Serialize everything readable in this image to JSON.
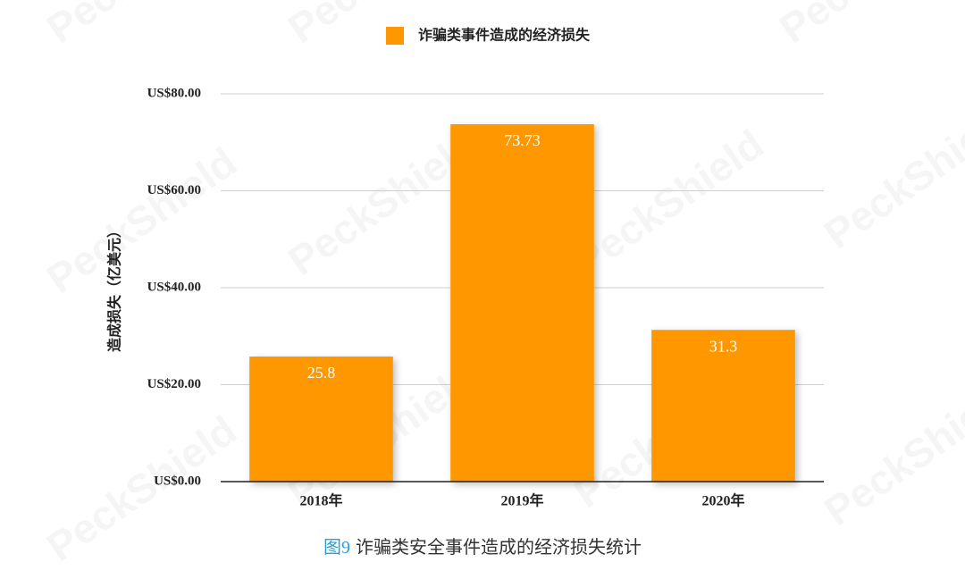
{
  "chart_data": {
    "type": "bar",
    "legend": "诈骗类事件造成的经济损失",
    "ylabel": "造成损失（亿美元）",
    "categories": [
      "2018年",
      "2019年",
      "2020年"
    ],
    "values": [
      25.8,
      73.73,
      31.3
    ],
    "color": "#ff9800",
    "ylim": [
      0,
      80
    ],
    "yticks": [
      {
        "value": 0,
        "label": "US$0.00"
      },
      {
        "value": 20,
        "label": "US$20.00"
      },
      {
        "value": 40,
        "label": "US$40.00"
      },
      {
        "value": 60,
        "label": "US$60.00"
      },
      {
        "value": 80,
        "label": "US$80.00"
      }
    ],
    "grid": true,
    "caption_label": "图9",
    "caption": "诈骗类安全事件造成的经济损失统计",
    "watermark": "PeckShield"
  }
}
